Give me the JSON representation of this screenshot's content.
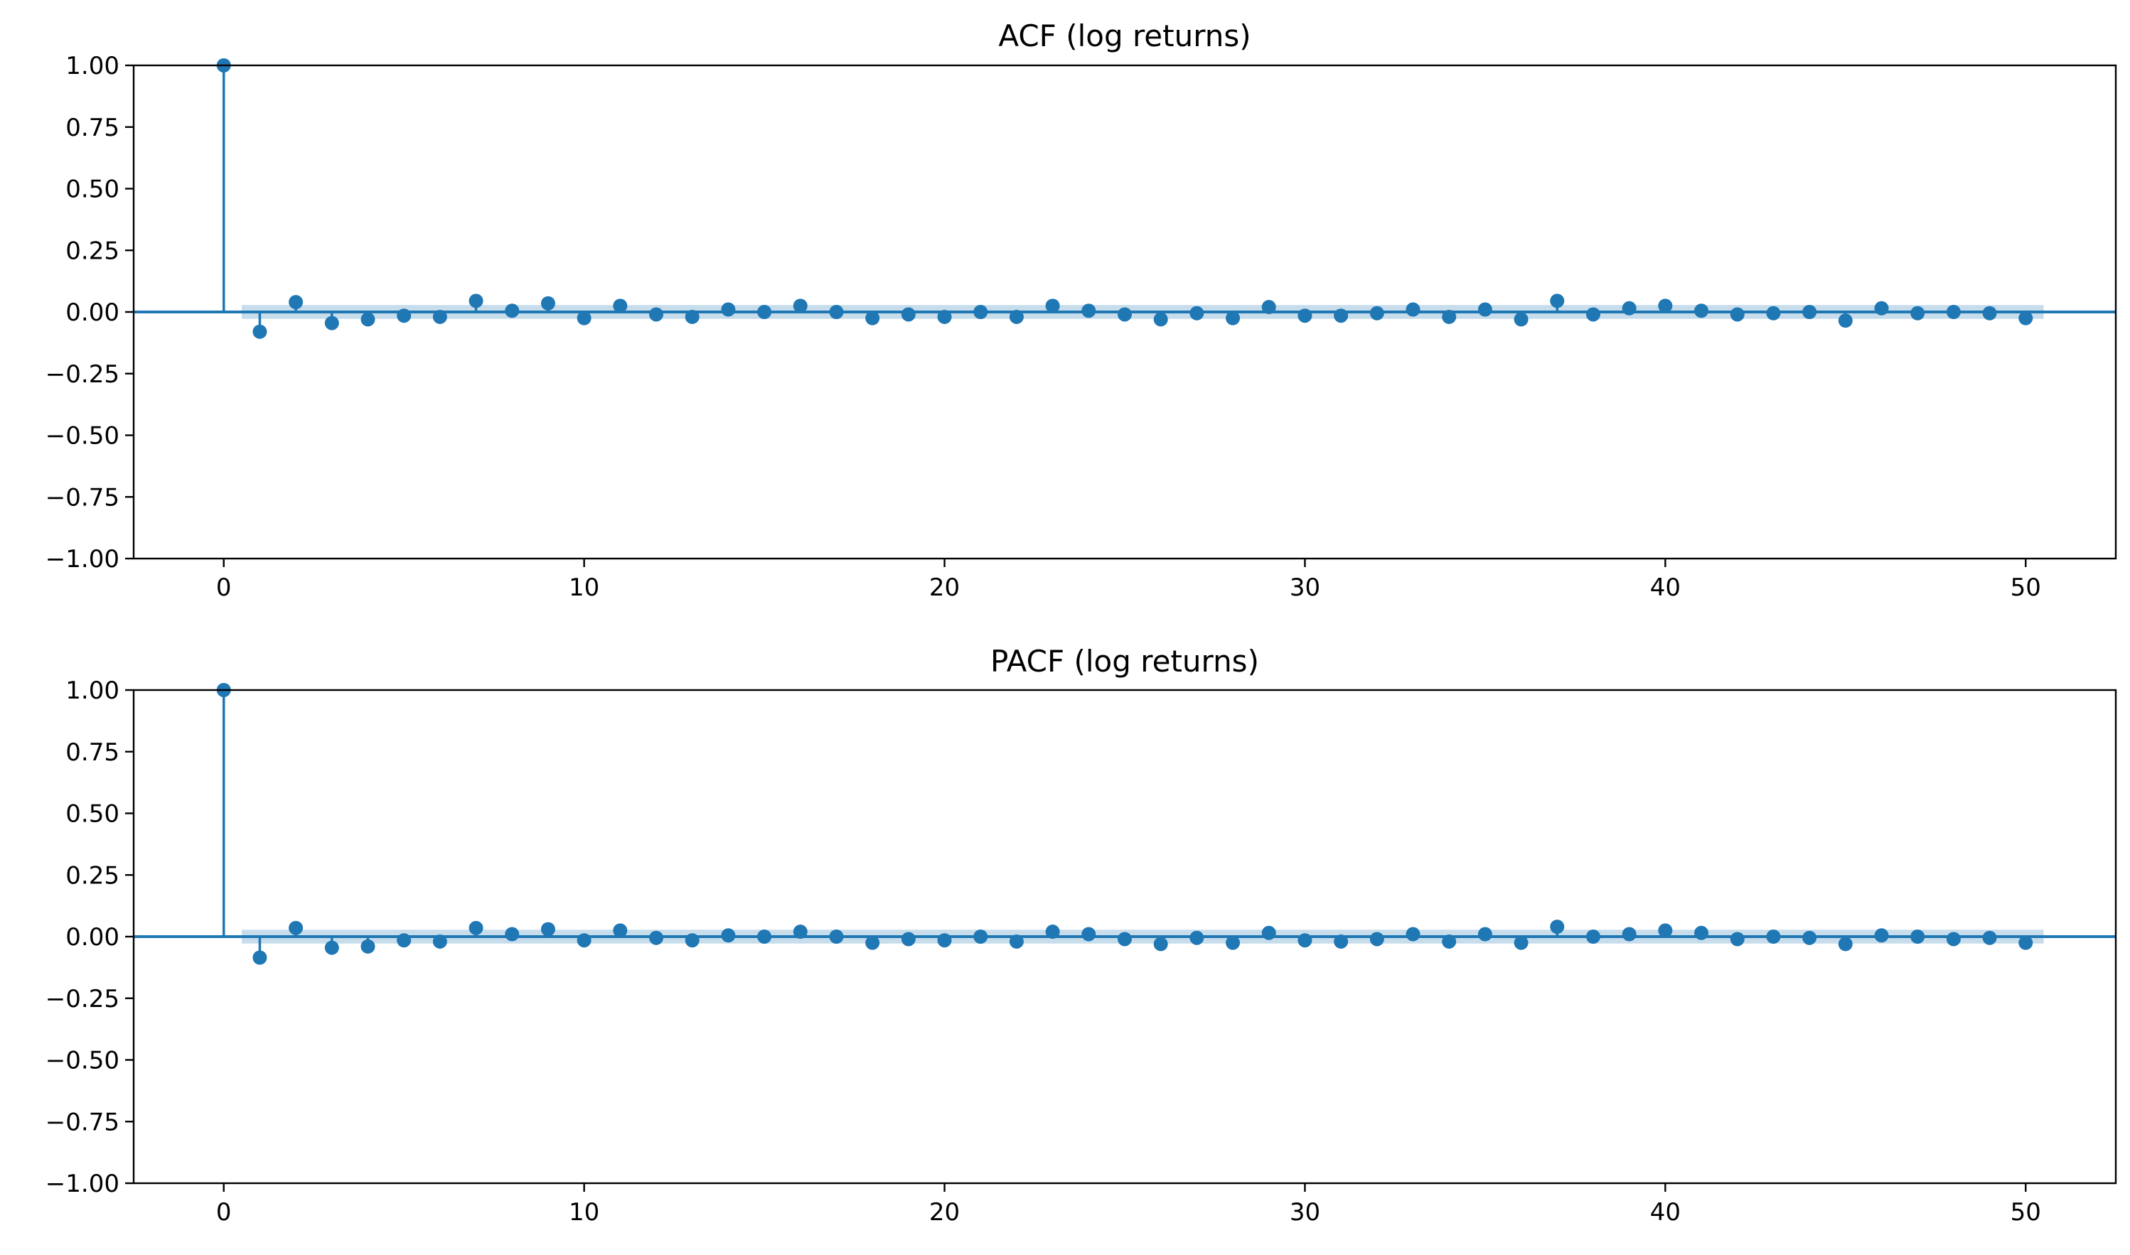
{
  "chart_data": [
    {
      "type": "scatter",
      "subtype": "stem",
      "title": "ACF (log returns)",
      "xlabel": "",
      "ylabel": "",
      "xlim": [
        -2.5,
        52.5
      ],
      "ylim": [
        -1.0,
        1.0
      ],
      "x_ticks": [
        "0",
        "10",
        "20",
        "30",
        "40",
        "50"
      ],
      "y_ticks": [
        "−1.00",
        "−0.75",
        "−0.50",
        "−0.25",
        "0.00",
        "0.25",
        "0.50",
        "0.75",
        "1.00"
      ],
      "lags": [
        0,
        1,
        2,
        3,
        4,
        5,
        6,
        7,
        8,
        9,
        10,
        11,
        12,
        13,
        14,
        15,
        16,
        17,
        18,
        19,
        20,
        21,
        22,
        23,
        24,
        25,
        26,
        27,
        28,
        29,
        30,
        31,
        32,
        33,
        34,
        35,
        36,
        37,
        38,
        39,
        40,
        41,
        42,
        43,
        44,
        45,
        46,
        47,
        48,
        49,
        50
      ],
      "values": [
        1.0,
        -0.08,
        0.04,
        -0.045,
        -0.03,
        -0.015,
        -0.02,
        0.045,
        0.005,
        0.035,
        -0.025,
        0.025,
        -0.01,
        -0.02,
        0.01,
        0.0,
        0.025,
        0.0,
        -0.025,
        -0.01,
        -0.02,
        0.0,
        -0.02,
        0.025,
        0.005,
        -0.01,
        -0.03,
        -0.005,
        -0.025,
        0.02,
        -0.015,
        -0.015,
        -0.005,
        0.01,
        -0.02,
        0.01,
        -0.03,
        0.045,
        -0.01,
        0.015,
        0.025,
        0.005,
        -0.01,
        -0.005,
        0.0,
        -0.035,
        0.015,
        -0.005,
        0.0,
        -0.005,
        -0.025
      ],
      "confidence_band": 0.028,
      "grid": false,
      "colors": {
        "series": "#1f77b4",
        "band": "#1f77b4"
      }
    },
    {
      "type": "scatter",
      "subtype": "stem",
      "title": "PACF (log returns)",
      "xlabel": "",
      "ylabel": "",
      "xlim": [
        -2.5,
        52.5
      ],
      "ylim": [
        -1.0,
        1.0
      ],
      "x_ticks": [
        "0",
        "10",
        "20",
        "30",
        "40",
        "50"
      ],
      "y_ticks": [
        "−1.00",
        "−0.75",
        "−0.50",
        "−0.25",
        "0.00",
        "0.25",
        "0.50",
        "0.75",
        "1.00"
      ],
      "lags": [
        0,
        1,
        2,
        3,
        4,
        5,
        6,
        7,
        8,
        9,
        10,
        11,
        12,
        13,
        14,
        15,
        16,
        17,
        18,
        19,
        20,
        21,
        22,
        23,
        24,
        25,
        26,
        27,
        28,
        29,
        30,
        31,
        32,
        33,
        34,
        35,
        36,
        37,
        38,
        39,
        40,
        41,
        42,
        43,
        44,
        45,
        46,
        47,
        48,
        49,
        50
      ],
      "values": [
        1.0,
        -0.085,
        0.035,
        -0.045,
        -0.04,
        -0.015,
        -0.02,
        0.035,
        0.01,
        0.03,
        -0.015,
        0.025,
        -0.005,
        -0.015,
        0.005,
        0.0,
        0.02,
        0.0,
        -0.025,
        -0.01,
        -0.015,
        0.0,
        -0.02,
        0.02,
        0.01,
        -0.01,
        -0.03,
        -0.005,
        -0.025,
        0.015,
        -0.015,
        -0.02,
        -0.01,
        0.01,
        -0.02,
        0.01,
        -0.025,
        0.04,
        0.0,
        0.01,
        0.025,
        0.015,
        -0.01,
        0.0,
        -0.005,
        -0.03,
        0.005,
        0.0,
        -0.01,
        -0.005,
        -0.025
      ],
      "confidence_band": 0.028,
      "grid": false,
      "colors": {
        "series": "#1f77b4",
        "band": "#1f77b4"
      }
    }
  ]
}
